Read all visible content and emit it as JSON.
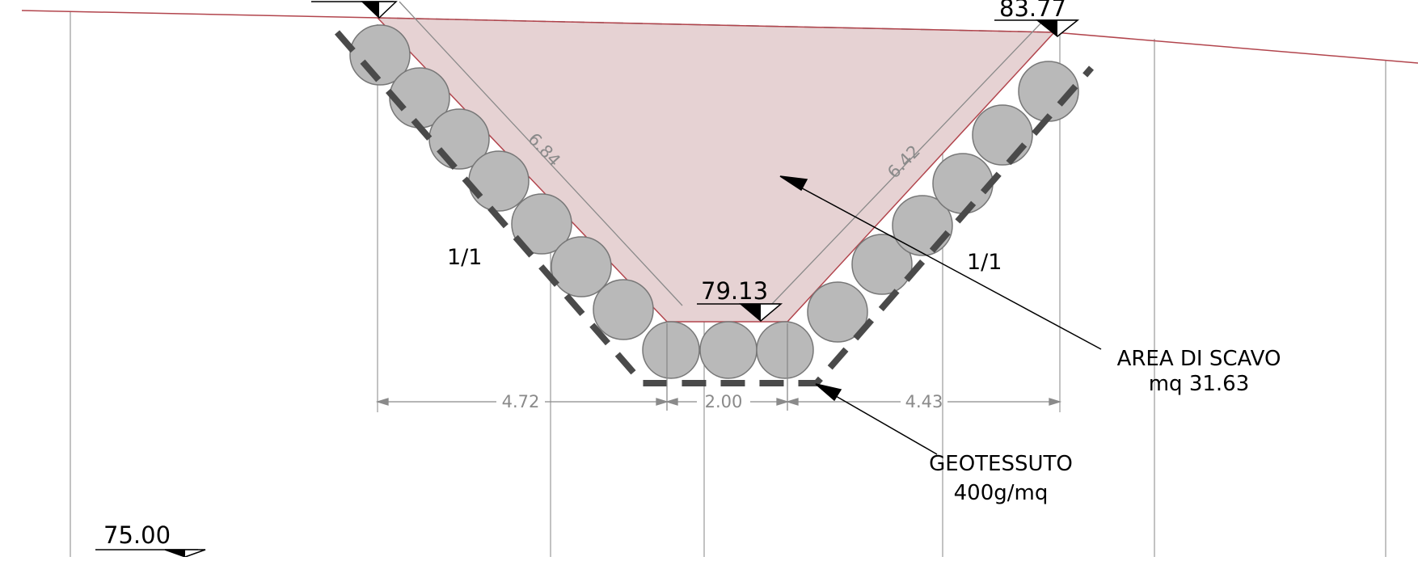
{
  "drawing": {
    "elevations": {
      "left_top": "",
      "right_top": "83.77",
      "bottom": "79.13",
      "datum": "75.00"
    },
    "dimensions": {
      "left_slope_length": "6.84",
      "right_slope_length": "6.42",
      "left_width": "4.72",
      "bottom_width": "2.00",
      "right_width": "4.43"
    },
    "slopes": {
      "left": "1/1",
      "right": "1/1"
    },
    "callouts": {
      "area_line1": "AREA DI SCAVO",
      "area_line2": "mq 31.63",
      "geo_line1": "GEOTESSUTO",
      "geo_line2": "400g/mq"
    },
    "colors": {
      "excavation_fill": "#e6d2d3",
      "terrain_line": "#b2454d",
      "boulder_fill": "#b9b9b9",
      "geotextile": "#4a4a4a",
      "dimension_line": "#8a8a8a"
    }
  }
}
